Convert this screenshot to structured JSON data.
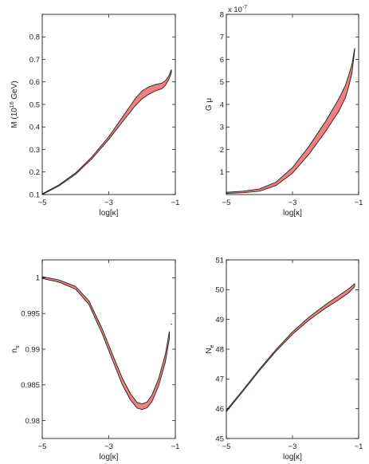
{
  "chart_data": [
    {
      "id": "M",
      "type": "area",
      "xlabel": "log[κ]",
      "ylabel": "M (10",
      "ylabel_sup": "16",
      "ylabel_suffix": " GeV)",
      "xlim": [
        -5,
        -1
      ],
      "ylim": [
        0.1,
        0.9
      ],
      "xticks": [
        -5,
        -3,
        -1
      ],
      "yticks": [
        0.1,
        0.2,
        0.3,
        0.4,
        0.5,
        0.6,
        0.7,
        0.8
      ],
      "ytick_labels": [
        "0.1",
        "0.2",
        "0.3",
        "0.4",
        "0.5",
        "0.6",
        "0.7",
        "0.8"
      ],
      "multiplier": "",
      "fill_color": "#f08080",
      "lower": [
        [
          -5.0,
          0.1
        ],
        [
          -4.5,
          0.138
        ],
        [
          -4.0,
          0.19
        ],
        [
          -3.5,
          0.26
        ],
        [
          -3.0,
          0.345
        ],
        [
          -2.5,
          0.44
        ],
        [
          -2.2,
          0.495
        ],
        [
          -2.0,
          0.525
        ],
        [
          -1.8,
          0.545
        ],
        [
          -1.6,
          0.56
        ],
        [
          -1.4,
          0.57
        ],
        [
          -1.3,
          0.585
        ],
        [
          -1.2,
          0.61
        ],
        [
          -1.12,
          0.64
        ]
      ],
      "upper": [
        [
          -5.0,
          0.103
        ],
        [
          -4.5,
          0.143
        ],
        [
          -4.0,
          0.196
        ],
        [
          -3.5,
          0.268
        ],
        [
          -3.0,
          0.357
        ],
        [
          -2.5,
          0.463
        ],
        [
          -2.2,
          0.527
        ],
        [
          -2.0,
          0.56
        ],
        [
          -1.8,
          0.578
        ],
        [
          -1.6,
          0.588
        ],
        [
          -1.4,
          0.595
        ],
        [
          -1.3,
          0.605
        ],
        [
          -1.2,
          0.625
        ],
        [
          -1.12,
          0.655
        ]
      ]
    },
    {
      "id": "Gmu",
      "type": "area",
      "xlabel": "log[κ]",
      "ylabel": "G μ",
      "ylabel_sup": "",
      "ylabel_suffix": "",
      "xlim": [
        -5,
        -1
      ],
      "ylim": [
        0,
        8
      ],
      "xticks": [
        -5,
        -3,
        -1
      ],
      "yticks": [
        1,
        2,
        3,
        4,
        5,
        6,
        7,
        8
      ],
      "ytick_labels": [
        "1",
        "2",
        "3",
        "4",
        "5",
        "6",
        "7",
        "8"
      ],
      "multiplier": "x 10",
      "multiplier_exp": "-7",
      "fill_color": "#f08080",
      "lower": [
        [
          -5.0,
          0.05
        ],
        [
          -4.5,
          0.08
        ],
        [
          -4.0,
          0.15
        ],
        [
          -3.5,
          0.4
        ],
        [
          -3.0,
          0.95
        ],
        [
          -2.5,
          1.8
        ],
        [
          -2.0,
          2.8
        ],
        [
          -1.6,
          3.7
        ],
        [
          -1.4,
          4.3
        ],
        [
          -1.3,
          4.8
        ],
        [
          -1.2,
          5.4
        ],
        [
          -1.12,
          6.4
        ]
      ],
      "upper": [
        [
          -5.0,
          0.1
        ],
        [
          -4.5,
          0.15
        ],
        [
          -4.0,
          0.25
        ],
        [
          -3.5,
          0.55
        ],
        [
          -3.0,
          1.2
        ],
        [
          -2.5,
          2.15
        ],
        [
          -2.0,
          3.25
        ],
        [
          -1.6,
          4.25
        ],
        [
          -1.4,
          4.85
        ],
        [
          -1.3,
          5.3
        ],
        [
          -1.2,
          5.8
        ],
        [
          -1.12,
          6.5
        ]
      ]
    },
    {
      "id": "ns",
      "type": "area",
      "xlabel": "log[κ]",
      "ylabel": "n",
      "ylabel_sub": "s",
      "xlim": [
        -5,
        -1
      ],
      "ylim": [
        0.9775,
        1.0025
      ],
      "xticks": [
        -5,
        -3,
        -1
      ],
      "yticks": [
        0.98,
        0.985,
        0.99,
        0.995,
        1.0
      ],
      "ytick_labels": [
        "0.98",
        "0.985",
        "0.99",
        "0.995",
        "1"
      ],
      "multiplier": "",
      "fill_color": "#f08080",
      "stray_point": [
        -1.12,
        0.9935
      ],
      "lower": [
        [
          -5.0,
          0.9999
        ],
        [
          -4.5,
          0.9994
        ],
        [
          -4.0,
          0.9984
        ],
        [
          -3.6,
          0.9963
        ],
        [
          -3.2,
          0.9922
        ],
        [
          -2.9,
          0.9886
        ],
        [
          -2.6,
          0.9851
        ],
        [
          -2.35,
          0.9829
        ],
        [
          -2.15,
          0.98175
        ],
        [
          -2.0,
          0.98155
        ],
        [
          -1.85,
          0.9818
        ],
        [
          -1.7,
          0.9827
        ],
        [
          -1.5,
          0.9849
        ],
        [
          -1.3,
          0.9882
        ],
        [
          -1.18,
          0.9915
        ]
      ],
      "upper": [
        [
          -5.0,
          1.00015
        ],
        [
          -4.5,
          0.9997
        ],
        [
          -4.0,
          0.9988
        ],
        [
          -3.6,
          0.9968
        ],
        [
          -3.2,
          0.9929
        ],
        [
          -2.9,
          0.9894
        ],
        [
          -2.6,
          0.986
        ],
        [
          -2.35,
          0.9838
        ],
        [
          -2.15,
          0.98255
        ],
        [
          -2.0,
          0.98235
        ],
        [
          -1.85,
          0.9826
        ],
        [
          -1.7,
          0.9836
        ],
        [
          -1.5,
          0.9859
        ],
        [
          -1.3,
          0.9893
        ],
        [
          -1.18,
          0.9925
        ]
      ]
    },
    {
      "id": "Ne",
      "type": "area",
      "xlabel": "log[κ]",
      "ylabel": "N",
      "ylabel_sub": "e",
      "xlim": [
        -5,
        -1
      ],
      "ylim": [
        45,
        51
      ],
      "xticks": [
        -5,
        -3,
        -1
      ],
      "yticks": [
        45,
        46,
        47,
        48,
        49,
        50,
        51
      ],
      "ytick_labels": [
        "45",
        "46",
        "47",
        "48",
        "49",
        "50",
        "51"
      ],
      "multiplier": "",
      "fill_color": "#f08080",
      "lower": [
        [
          -5.0,
          45.9
        ],
        [
          -4.5,
          46.58
        ],
        [
          -4.0,
          47.28
        ],
        [
          -3.5,
          47.93
        ],
        [
          -3.0,
          48.5
        ],
        [
          -2.5,
          48.98
        ],
        [
          -2.0,
          49.38
        ],
        [
          -1.6,
          49.66
        ],
        [
          -1.3,
          49.9
        ],
        [
          -1.12,
          50.1
        ]
      ],
      "upper": [
        [
          -5.0,
          45.95
        ],
        [
          -4.5,
          46.63
        ],
        [
          -4.0,
          47.33
        ],
        [
          -3.5,
          47.99
        ],
        [
          -3.0,
          48.58
        ],
        [
          -2.5,
          49.08
        ],
        [
          -2.0,
          49.5
        ],
        [
          -1.6,
          49.8
        ],
        [
          -1.3,
          50.03
        ],
        [
          -1.12,
          50.2
        ]
      ]
    }
  ]
}
